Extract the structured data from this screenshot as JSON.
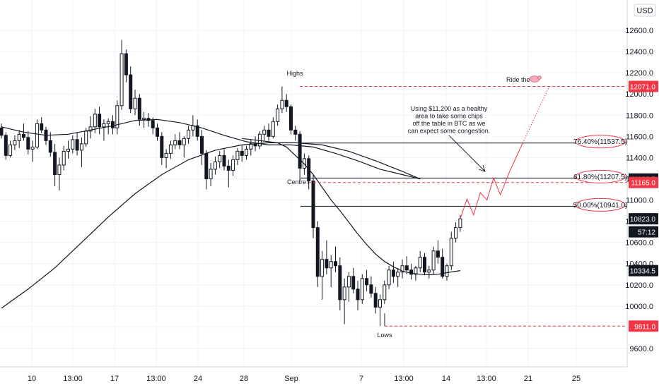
{
  "chart_data": {
    "type": "candlestick",
    "currency_button": "USD",
    "ylim": [
      9350,
      12800
    ],
    "y_ticks": [
      "12600.0",
      "12400.0",
      "12200.0",
      "12000.0",
      "11800.0",
      "11600.0",
      "11400.0",
      "11200.0",
      "11000.0",
      "10800.0",
      "10600.0",
      "10400.0",
      "10200.0",
      "10000.0",
      "9800.0",
      "9600.0"
    ],
    "x_ticks": [
      "10",
      "13:00",
      "17",
      "13:00",
      "24",
      "28",
      "Sep",
      "7",
      "13:00",
      "14",
      "13:00",
      "21",
      "25"
    ],
    "candles": [
      [
        11680,
        11720,
        11580,
        11610
      ],
      [
        11610,
        11640,
        11380,
        11420
      ],
      [
        11420,
        11560,
        11400,
        11520
      ],
      [
        11520,
        11610,
        11470,
        11560
      ],
      [
        11560,
        11660,
        11490,
        11620
      ],
      [
        11620,
        11720,
        11560,
        11590
      ],
      [
        11590,
        11650,
        11430,
        11480
      ],
      [
        11480,
        11560,
        11360,
        11500
      ],
      [
        11500,
        11760,
        11480,
        11720
      ],
      [
        11720,
        11780,
        11630,
        11660
      ],
      [
        11660,
        11690,
        11520,
        11560
      ],
      [
        11560,
        11640,
        11410,
        11450
      ],
      [
        11450,
        11530,
        11130,
        11240
      ],
      [
        11240,
        11400,
        11090,
        11330
      ],
      [
        11330,
        11510,
        11280,
        11460
      ],
      [
        11460,
        11560,
        11390,
        11480
      ],
      [
        11480,
        11610,
        11440,
        11570
      ],
      [
        11570,
        11640,
        11420,
        11470
      ],
      [
        11470,
        11590,
        11310,
        11530
      ],
      [
        11530,
        11680,
        11500,
        11650
      ],
      [
        11650,
        11790,
        11580,
        11690
      ],
      [
        11690,
        11860,
        11630,
        11810
      ],
      [
        11810,
        11880,
        11620,
        11690
      ],
      [
        11690,
        11760,
        11560,
        11720
      ],
      [
        11720,
        11770,
        11620,
        11740
      ],
      [
        11740,
        11800,
        11620,
        11680
      ],
      [
        11680,
        11940,
        11620,
        11890
      ],
      [
        11890,
        12510,
        11850,
        12380
      ],
      [
        12380,
        12420,
        12110,
        12180
      ],
      [
        12180,
        12260,
        11820,
        11860
      ],
      [
        11860,
        12040,
        11800,
        11960
      ],
      [
        11960,
        12000,
        11700,
        11760
      ],
      [
        11760,
        11830,
        11680,
        11770
      ],
      [
        11770,
        11820,
        11690,
        11750
      ],
      [
        11750,
        11780,
        11620,
        11680
      ],
      [
        11680,
        11720,
        11560,
        11600
      ],
      [
        11600,
        11640,
        11330,
        11400
      ],
      [
        11400,
        11480,
        11300,
        11440
      ],
      [
        11440,
        11560,
        11390,
        11520
      ],
      [
        11520,
        11620,
        11480,
        11560
      ],
      [
        11560,
        11640,
        11480,
        11520
      ],
      [
        11520,
        11600,
        11400,
        11580
      ],
      [
        11580,
        11700,
        11530,
        11660
      ],
      [
        11660,
        11800,
        11600,
        11700
      ],
      [
        11700,
        11760,
        11560,
        11600
      ],
      [
        11600,
        11660,
        11330,
        11440
      ],
      [
        11440,
        11470,
        11100,
        11200
      ],
      [
        11200,
        11350,
        11130,
        11290
      ],
      [
        11290,
        11410,
        11240,
        11360
      ],
      [
        11360,
        11460,
        11300,
        11420
      ],
      [
        11420,
        11480,
        11280,
        11320
      ],
      [
        11320,
        11380,
        11120,
        11280
      ],
      [
        11280,
        11420,
        11230,
        11380
      ],
      [
        11380,
        11490,
        11330,
        11460
      ],
      [
        11460,
        11520,
        11360,
        11420
      ],
      [
        11420,
        11510,
        11380,
        11480
      ],
      [
        11480,
        11570,
        11420,
        11530
      ],
      [
        11530,
        11600,
        11460,
        11510
      ],
      [
        11510,
        11650,
        11480,
        11620
      ],
      [
        11620,
        11700,
        11560,
        11660
      ],
      [
        11660,
        11720,
        11560,
        11600
      ],
      [
        11600,
        11780,
        11580,
        11740
      ],
      [
        11740,
        11900,
        11700,
        11860
      ],
      [
        11860,
        12071,
        11820,
        11940
      ],
      [
        11940,
        12000,
        11830,
        11880
      ],
      [
        11880,
        11900,
        11620,
        11660
      ],
      [
        11660,
        11700,
        11560,
        11620
      ],
      [
        11620,
        11650,
        11180,
        11300
      ],
      [
        11300,
        11440,
        11240,
        11390
      ],
      [
        11390,
        11420,
        11100,
        11180
      ],
      [
        11180,
        11240,
        10640,
        10740
      ],
      [
        10740,
        10800,
        10180,
        10280
      ],
      [
        10280,
        10520,
        10060,
        10440
      ],
      [
        10440,
        10620,
        10300,
        10360
      ],
      [
        10360,
        10480,
        10180,
        10420
      ],
      [
        10420,
        10560,
        10320,
        10380
      ],
      [
        10380,
        10460,
        9960,
        10060
      ],
      [
        10060,
        10260,
        9830,
        10180
      ],
      [
        10180,
        10320,
        10040,
        10280
      ],
      [
        10280,
        10360,
        10120,
        10160
      ],
      [
        10160,
        10240,
        9960,
        10060
      ],
      [
        10060,
        10300,
        10020,
        10260
      ],
      [
        10260,
        10340,
        10140,
        10200
      ],
      [
        10200,
        10280,
        10080,
        10120
      ],
      [
        10120,
        10180,
        9930,
        9990
      ],
      [
        9990,
        10110,
        9811,
        10060
      ],
      [
        10060,
        10240,
        10020,
        10200
      ],
      [
        10200,
        10380,
        10160,
        10340
      ],
      [
        10340,
        10420,
        10220,
        10280
      ],
      [
        10280,
        10360,
        10180,
        10320
      ],
      [
        10320,
        10440,
        10260,
        10380
      ],
      [
        10380,
        10470,
        10300,
        10340
      ],
      [
        10340,
        10400,
        10250,
        10300
      ],
      [
        10300,
        10380,
        10240,
        10360
      ],
      [
        10360,
        10520,
        10320,
        10460
      ],
      [
        10460,
        10500,
        10290,
        10320
      ],
      [
        10320,
        10380,
        10260,
        10340
      ],
      [
        10340,
        10560,
        10300,
        10520
      ],
      [
        10520,
        10620,
        10400,
        10460
      ],
      [
        10460,
        10540,
        10260,
        10280
      ],
      [
        10280,
        10400,
        10240,
        10380
      ],
      [
        10380,
        10700,
        10340,
        10640
      ],
      [
        10640,
        10790,
        10600,
        10740
      ],
      [
        10740,
        10860,
        10700,
        10823
      ]
    ],
    "ma_short": [
      [
        54,
        11580
      ],
      [
        58,
        11560
      ],
      [
        62,
        11540
      ],
      [
        64,
        11500
      ],
      [
        66,
        11420
      ],
      [
        68,
        11340
      ],
      [
        70,
        11240
      ],
      [
        72,
        11120
      ],
      [
        74,
        11000
      ],
      [
        76,
        10900
      ],
      [
        78,
        10790
      ],
      [
        80,
        10680
      ],
      [
        82,
        10580
      ],
      [
        84,
        10490
      ],
      [
        86,
        10420
      ],
      [
        88,
        10370
      ],
      [
        90,
        10330
      ],
      [
        92,
        10310
      ],
      [
        94,
        10300
      ],
      [
        96,
        10295
      ],
      [
        98,
        10300
      ],
      [
        100,
        10315
      ],
      [
        103,
        10334.5
      ]
    ],
    "ma_mid": [
      [
        0,
        11690
      ],
      [
        5,
        11640
      ],
      [
        10,
        11610
      ],
      [
        15,
        11620
      ],
      [
        20,
        11660
      ],
      [
        25,
        11700
      ],
      [
        30,
        11750
      ],
      [
        35,
        11760
      ],
      [
        40,
        11730
      ],
      [
        45,
        11680
      ],
      [
        50,
        11610
      ],
      [
        55,
        11550
      ],
      [
        60,
        11520
      ],
      [
        65,
        11520
      ],
      [
        70,
        11500
      ],
      [
        75,
        11440
      ],
      [
        80,
        11370
      ],
      [
        85,
        11290
      ],
      [
        90,
        11240
      ],
      [
        94,
        11198.5
      ]
    ],
    "ma_long": [
      [
        0,
        9980
      ],
      [
        6,
        10160
      ],
      [
        12,
        10360
      ],
      [
        18,
        10600
      ],
      [
        24,
        10840
      ],
      [
        30,
        11060
      ],
      [
        36,
        11240
      ],
      [
        42,
        11380
      ],
      [
        48,
        11470
      ],
      [
        54,
        11520
      ],
      [
        60,
        11540
      ],
      [
        66,
        11540
      ],
      [
        72,
        11520
      ],
      [
        78,
        11460
      ],
      [
        84,
        11370
      ],
      [
        90,
        11270
      ],
      [
        94,
        11198.5
      ]
    ],
    "levels": {
      "highs_price": 12071.0,
      "lows_price": 9811.0,
      "centre_price": 11165.0,
      "fib_76": 11537.5,
      "fib_61": 11207.5,
      "fib_50": 10941.0
    },
    "projection": [
      [
        103,
        10823
      ],
      [
        104.5,
        11010
      ],
      [
        106,
        10860
      ],
      [
        107.5,
        11070
      ],
      [
        109,
        11000
      ],
      [
        110.5,
        11207.5
      ],
      [
        112,
        11050
      ],
      [
        114,
        11260
      ],
      [
        117,
        11537.5
      ]
    ],
    "projection_dotted": [
      [
        117,
        11537.5
      ],
      [
        123,
        12071
      ]
    ],
    "badges": [
      {
        "text": "12071.0",
        "price": 12071.0,
        "color": "#f23645"
      },
      {
        "text": "11198.5",
        "price": 11198.5,
        "color": "#131722"
      },
      {
        "text": "11165.0",
        "price": 11165.0,
        "color": "#f23645"
      },
      {
        "text": "10823.0",
        "price": 10823.0,
        "color": "#131722"
      },
      {
        "text": "57:12",
        "price": 10700.0,
        "color": "#131722"
      },
      {
        "text": "10334.5",
        "price": 10334.5,
        "color": "#131722"
      },
      {
        "text": "9811.0",
        "price": 9811.0,
        "color": "#f23645"
      }
    ],
    "fib_labels": [
      {
        "text": "76.40%(11537.5)",
        "price": 11537.5
      },
      {
        "text": "61.80%(11207.5)",
        "price": 11207.5
      },
      {
        "text": "50.00%(10941.0)",
        "price": 10941.0
      }
    ],
    "annotations": {
      "highs": "Highs",
      "lows": "Lows",
      "centre": "Centre",
      "ride": "Ride the",
      "note": [
        "Using $11,200 as a healthy",
        "area to take some chips",
        "off the table in BTC as we",
        "can expect some congestion."
      ]
    },
    "colors": {
      "candle": "#131722",
      "red": "#f23645",
      "grid": "#f0f3fa",
      "axis": "#d1d4dc"
    }
  }
}
